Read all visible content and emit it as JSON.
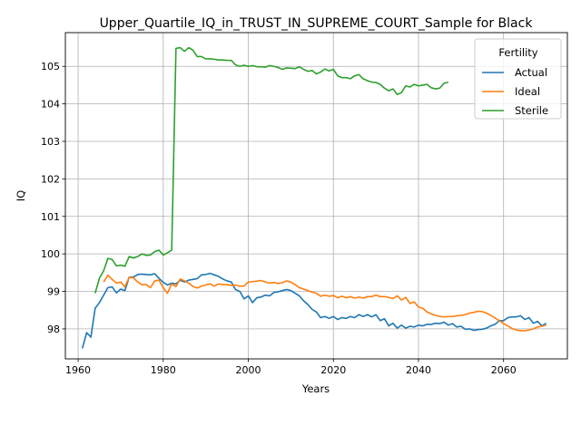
{
  "chart_data": {
    "type": "line",
    "title": "Upper_Quartile_IQ_in_TRUST_IN_SUPREME_COURT_Sample for Black",
    "xlabel": "Years",
    "ylabel": "IQ",
    "xlim": [
      1957,
      2075
    ],
    "ylim": [
      97.2,
      105.9
    ],
    "xticks": [
      1960,
      1980,
      2000,
      2020,
      2040,
      2060
    ],
    "yticks": [
      98,
      99,
      100,
      101,
      102,
      103,
      104,
      105
    ],
    "grid": true,
    "legend": {
      "title": "Fertility",
      "placement": "top-right"
    },
    "series": [
      {
        "name": "Actual",
        "color": "#1f77b4",
        "points": [
          [
            1961,
            97.48
          ],
          [
            1962,
            97.9
          ],
          [
            1963,
            97.78
          ],
          [
            1964,
            98.55
          ],
          [
            1965,
            98.7
          ],
          [
            1966,
            98.9
          ],
          [
            1967,
            99.1
          ],
          [
            1968,
            99.12
          ],
          [
            1969,
            98.96
          ],
          [
            1970,
            99.06
          ],
          [
            1971,
            99.02
          ],
          [
            1972,
            99.38
          ],
          [
            1973,
            99.38
          ],
          [
            1974,
            99.45
          ],
          [
            1975,
            99.46
          ],
          [
            1976,
            99.45
          ],
          [
            1977,
            99.44
          ],
          [
            1978,
            99.47
          ],
          [
            1979,
            99.35
          ],
          [
            1980,
            99.24
          ],
          [
            1981,
            99.17
          ],
          [
            1982,
            99.22
          ],
          [
            1983,
            99.2
          ],
          [
            1984,
            99.3
          ],
          [
            1985,
            99.25
          ],
          [
            1986,
            99.3
          ],
          [
            1987,
            99.32
          ],
          [
            1988,
            99.34
          ],
          [
            1989,
            99.44
          ],
          [
            1990,
            99.45
          ],
          [
            1991,
            99.48
          ],
          [
            1992,
            99.44
          ],
          [
            1993,
            99.4
          ],
          [
            1994,
            99.33
          ],
          [
            1995,
            99.28
          ],
          [
            1996,
            99.25
          ],
          [
            1997,
            99.05
          ],
          [
            1998,
            99.0
          ],
          [
            1999,
            98.8
          ],
          [
            2000,
            98.88
          ],
          [
            2001,
            98.7
          ],
          [
            2002,
            98.83
          ],
          [
            2003,
            98.85
          ],
          [
            2004,
            98.9
          ],
          [
            2005,
            98.88
          ],
          [
            2006,
            98.97
          ],
          [
            2007,
            98.99
          ],
          [
            2008,
            99.02
          ],
          [
            2009,
            99.05
          ],
          [
            2010,
            99.02
          ],
          [
            2011,
            98.95
          ],
          [
            2012,
            98.88
          ],
          [
            2013,
            98.75
          ],
          [
            2014,
            98.65
          ],
          [
            2015,
            98.52
          ],
          [
            2016,
            98.45
          ],
          [
            2017,
            98.3
          ],
          [
            2018,
            98.33
          ],
          [
            2019,
            98.28
          ],
          [
            2020,
            98.33
          ],
          [
            2021,
            98.25
          ],
          [
            2022,
            98.3
          ],
          [
            2023,
            98.28
          ],
          [
            2024,
            98.33
          ],
          [
            2025,
            98.3
          ],
          [
            2026,
            98.38
          ],
          [
            2027,
            98.33
          ],
          [
            2028,
            98.38
          ],
          [
            2029,
            98.32
          ],
          [
            2030,
            98.38
          ],
          [
            2031,
            98.22
          ],
          [
            2032,
            98.27
          ],
          [
            2033,
            98.08
          ],
          [
            2034,
            98.15
          ],
          [
            2035,
            98.02
          ],
          [
            2036,
            98.1
          ],
          [
            2037,
            98.02
          ],
          [
            2038,
            98.07
          ],
          [
            2039,
            98.05
          ],
          [
            2040,
            98.1
          ],
          [
            2041,
            98.08
          ],
          [
            2042,
            98.12
          ],
          [
            2043,
            98.12
          ],
          [
            2044,
            98.15
          ],
          [
            2045,
            98.14
          ],
          [
            2046,
            98.18
          ],
          [
            2047,
            98.1
          ],
          [
            2048,
            98.14
          ],
          [
            2049,
            98.05
          ],
          [
            2050,
            98.07
          ],
          [
            2051,
            97.99
          ],
          [
            2052,
            98.0
          ],
          [
            2053,
            97.96
          ],
          [
            2054,
            97.98
          ],
          [
            2055,
            97.99
          ],
          [
            2056,
            98.02
          ],
          [
            2057,
            98.08
          ],
          [
            2058,
            98.12
          ],
          [
            2059,
            98.22
          ],
          [
            2060,
            98.22
          ],
          [
            2061,
            98.3
          ],
          [
            2062,
            98.32
          ],
          [
            2063,
            98.32
          ],
          [
            2064,
            98.35
          ],
          [
            2065,
            98.25
          ],
          [
            2066,
            98.3
          ],
          [
            2067,
            98.15
          ],
          [
            2068,
            98.2
          ],
          [
            2069,
            98.08
          ],
          [
            2070,
            98.15
          ]
        ]
      },
      {
        "name": "Ideal",
        "color": "#ff7f0e",
        "points": [
          [
            1966,
            99.25
          ],
          [
            1967,
            99.43
          ],
          [
            1968,
            99.32
          ],
          [
            1969,
            99.22
          ],
          [
            1970,
            99.25
          ],
          [
            1971,
            99.12
          ],
          [
            1972,
            99.38
          ],
          [
            1973,
            99.36
          ],
          [
            1974,
            99.25
          ],
          [
            1975,
            99.18
          ],
          [
            1976,
            99.18
          ],
          [
            1977,
            99.1
          ],
          [
            1978,
            99.28
          ],
          [
            1979,
            99.3
          ],
          [
            1980,
            99.1
          ],
          [
            1981,
            98.95
          ],
          [
            1982,
            99.2
          ],
          [
            1983,
            99.13
          ],
          [
            1984,
            99.33
          ],
          [
            1985,
            99.28
          ],
          [
            1986,
            99.22
          ],
          [
            1987,
            99.13
          ],
          [
            1988,
            99.09
          ],
          [
            1989,
            99.14
          ],
          [
            1990,
            99.17
          ],
          [
            1991,
            99.2
          ],
          [
            1992,
            99.14
          ],
          [
            1993,
            99.2
          ],
          [
            1994,
            99.18
          ],
          [
            1995,
            99.18
          ],
          [
            1996,
            99.16
          ],
          [
            1997,
            99.17
          ],
          [
            1998,
            99.14
          ],
          [
            1999,
            99.14
          ],
          [
            2000,
            99.25
          ],
          [
            2001,
            99.26
          ],
          [
            2002,
            99.27
          ],
          [
            2003,
            99.29
          ],
          [
            2004,
            99.25
          ],
          [
            2005,
            99.22
          ],
          [
            2006,
            99.24
          ],
          [
            2007,
            99.21
          ],
          [
            2008,
            99.23
          ],
          [
            2009,
            99.28
          ],
          [
            2010,
            99.25
          ],
          [
            2011,
            99.18
          ],
          [
            2012,
            99.1
          ],
          [
            2013,
            99.06
          ],
          [
            2014,
            99.02
          ],
          [
            2015,
            98.98
          ],
          [
            2016,
            98.95
          ],
          [
            2017,
            98.87
          ],
          [
            2018,
            98.9
          ],
          [
            2019,
            98.87
          ],
          [
            2020,
            98.89
          ],
          [
            2021,
            98.83
          ],
          [
            2022,
            98.87
          ],
          [
            2023,
            98.83
          ],
          [
            2024,
            98.86
          ],
          [
            2025,
            98.82
          ],
          [
            2026,
            98.85
          ],
          [
            2027,
            98.82
          ],
          [
            2028,
            98.86
          ],
          [
            2029,
            98.86
          ],
          [
            2030,
            98.9
          ],
          [
            2031,
            98.86
          ],
          [
            2032,
            98.86
          ],
          [
            2033,
            98.84
          ],
          [
            2034,
            98.81
          ],
          [
            2035,
            98.88
          ],
          [
            2036,
            98.77
          ],
          [
            2037,
            98.84
          ],
          [
            2038,
            98.68
          ],
          [
            2039,
            98.72
          ],
          [
            2040,
            98.58
          ],
          [
            2041,
            98.55
          ],
          [
            2042,
            98.45
          ],
          [
            2043,
            98.4
          ],
          [
            2044,
            98.36
          ],
          [
            2045,
            98.33
          ],
          [
            2046,
            98.32
          ],
          [
            2047,
            98.33
          ],
          [
            2048,
            98.33
          ],
          [
            2049,
            98.35
          ],
          [
            2050,
            98.36
          ],
          [
            2051,
            98.38
          ],
          [
            2052,
            98.42
          ],
          [
            2053,
            98.44
          ],
          [
            2054,
            98.47
          ],
          [
            2055,
            98.46
          ],
          [
            2056,
            98.42
          ],
          [
            2057,
            98.36
          ],
          [
            2058,
            98.29
          ],
          [
            2059,
            98.22
          ],
          [
            2060,
            98.14
          ],
          [
            2061,
            98.08
          ],
          [
            2062,
            98.01
          ],
          [
            2063,
            97.97
          ],
          [
            2064,
            97.95
          ],
          [
            2065,
            97.95
          ],
          [
            2066,
            97.97
          ],
          [
            2067,
            98.0
          ],
          [
            2068,
            98.05
          ],
          [
            2069,
            98.07
          ],
          [
            2070,
            98.1
          ]
        ]
      },
      {
        "name": "Sterile",
        "color": "#2ca02c",
        "points": [
          [
            1964,
            98.95
          ],
          [
            1965,
            99.35
          ],
          [
            1966,
            99.55
          ],
          [
            1967,
            99.88
          ],
          [
            1968,
            99.85
          ],
          [
            1969,
            99.68
          ],
          [
            1970,
            99.7
          ],
          [
            1971,
            99.67
          ],
          [
            1972,
            99.93
          ],
          [
            1973,
            99.89
          ],
          [
            1974,
            99.93
          ],
          [
            1975,
            100.0
          ],
          [
            1976,
            99.96
          ],
          [
            1977,
            99.97
          ],
          [
            1978,
            100.06
          ],
          [
            1979,
            100.1
          ],
          [
            1980,
            99.97
          ],
          [
            1981,
            100.03
          ],
          [
            1982,
            100.1
          ],
          [
            1983,
            105.48
          ],
          [
            1984,
            105.5
          ],
          [
            1985,
            105.4
          ],
          [
            1986,
            105.5
          ],
          [
            1987,
            105.43
          ],
          [
            1988,
            105.26
          ],
          [
            1989,
            105.26
          ],
          [
            1990,
            105.2
          ],
          [
            1991,
            105.2
          ],
          [
            1992,
            105.19
          ],
          [
            1993,
            105.17
          ],
          [
            1994,
            105.17
          ],
          [
            1995,
            105.16
          ],
          [
            1996,
            105.16
          ],
          [
            1997,
            105.04
          ],
          [
            1998,
            105.0
          ],
          [
            1999,
            105.03
          ],
          [
            2000,
            105.0
          ],
          [
            2001,
            105.02
          ],
          [
            2002,
            104.99
          ],
          [
            2003,
            104.99
          ],
          [
            2004,
            104.98
          ],
          [
            2005,
            105.02
          ],
          [
            2006,
            105.0
          ],
          [
            2007,
            104.97
          ],
          [
            2008,
            104.92
          ],
          [
            2009,
            104.96
          ],
          [
            2010,
            104.95
          ],
          [
            2011,
            104.94
          ],
          [
            2012,
            104.99
          ],
          [
            2013,
            104.92
          ],
          [
            2014,
            104.87
          ],
          [
            2015,
            104.89
          ],
          [
            2016,
            104.8
          ],
          [
            2017,
            104.85
          ],
          [
            2018,
            104.93
          ],
          [
            2019,
            104.88
          ],
          [
            2020,
            104.92
          ],
          [
            2021,
            104.75
          ],
          [
            2022,
            104.7
          ],
          [
            2023,
            104.7
          ],
          [
            2024,
            104.67
          ],
          [
            2025,
            104.75
          ],
          [
            2026,
            104.78
          ],
          [
            2027,
            104.67
          ],
          [
            2028,
            104.62
          ],
          [
            2029,
            104.58
          ],
          [
            2030,
            104.57
          ],
          [
            2031,
            104.52
          ],
          [
            2032,
            104.42
          ],
          [
            2033,
            104.35
          ],
          [
            2034,
            104.4
          ],
          [
            2035,
            104.25
          ],
          [
            2036,
            104.3
          ],
          [
            2037,
            104.48
          ],
          [
            2038,
            104.45
          ],
          [
            2039,
            104.52
          ],
          [
            2040,
            104.48
          ],
          [
            2041,
            104.5
          ],
          [
            2042,
            104.52
          ],
          [
            2043,
            104.43
          ],
          [
            2044,
            104.4
          ],
          [
            2045,
            104.42
          ],
          [
            2046,
            104.55
          ],
          [
            2047,
            104.58
          ]
        ]
      }
    ]
  }
}
